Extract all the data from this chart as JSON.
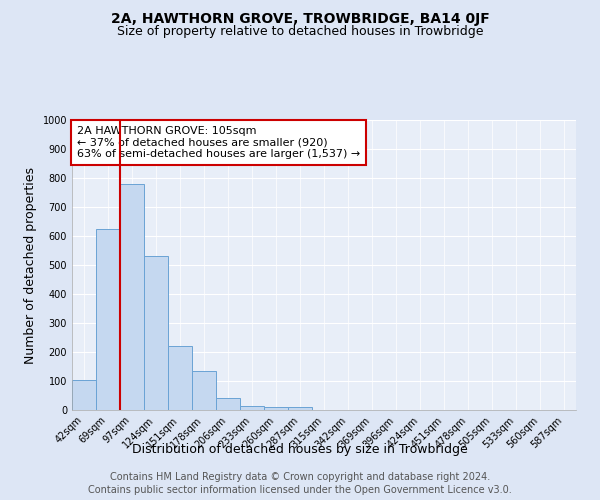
{
  "title": "2A, HAWTHORN GROVE, TROWBRIDGE, BA14 0JF",
  "subtitle": "Size of property relative to detached houses in Trowbridge",
  "xlabel": "Distribution of detached houses by size in Trowbridge",
  "ylabel": "Number of detached properties",
  "categories": [
    "42sqm",
    "69sqm",
    "97sqm",
    "124sqm",
    "151sqm",
    "178sqm",
    "206sqm",
    "233sqm",
    "260sqm",
    "287sqm",
    "315sqm",
    "342sqm",
    "369sqm",
    "396sqm",
    "424sqm",
    "451sqm",
    "478sqm",
    "505sqm",
    "533sqm",
    "560sqm",
    "587sqm"
  ],
  "values": [
    102,
    625,
    780,
    530,
    220,
    135,
    42,
    15,
    10,
    10,
    0,
    0,
    0,
    0,
    0,
    0,
    0,
    0,
    0,
    0,
    0
  ],
  "bar_color": "#c5d8f0",
  "bar_edge_color": "#6aa3d5",
  "red_line_x": 1.5,
  "red_line_color": "#cc0000",
  "ylim": [
    0,
    1000
  ],
  "yticks": [
    0,
    100,
    200,
    300,
    400,
    500,
    600,
    700,
    800,
    900,
    1000
  ],
  "annotation_text": "2A HAWTHORN GROVE: 105sqm\n← 37% of detached houses are smaller (920)\n63% of semi-detached houses are larger (1,537) →",
  "annotation_box_color": "#ffffff",
  "annotation_box_edge": "#cc0000",
  "footer_line1": "Contains HM Land Registry data © Crown copyright and database right 2024.",
  "footer_line2": "Contains public sector information licensed under the Open Government Licence v3.0.",
  "background_color": "#dde6f5",
  "plot_background": "#e8eef8",
  "grid_color": "#ffffff",
  "title_fontsize": 10,
  "subtitle_fontsize": 9,
  "axis_label_fontsize": 9,
  "tick_fontsize": 7,
  "annotation_fontsize": 8,
  "footer_fontsize": 7
}
